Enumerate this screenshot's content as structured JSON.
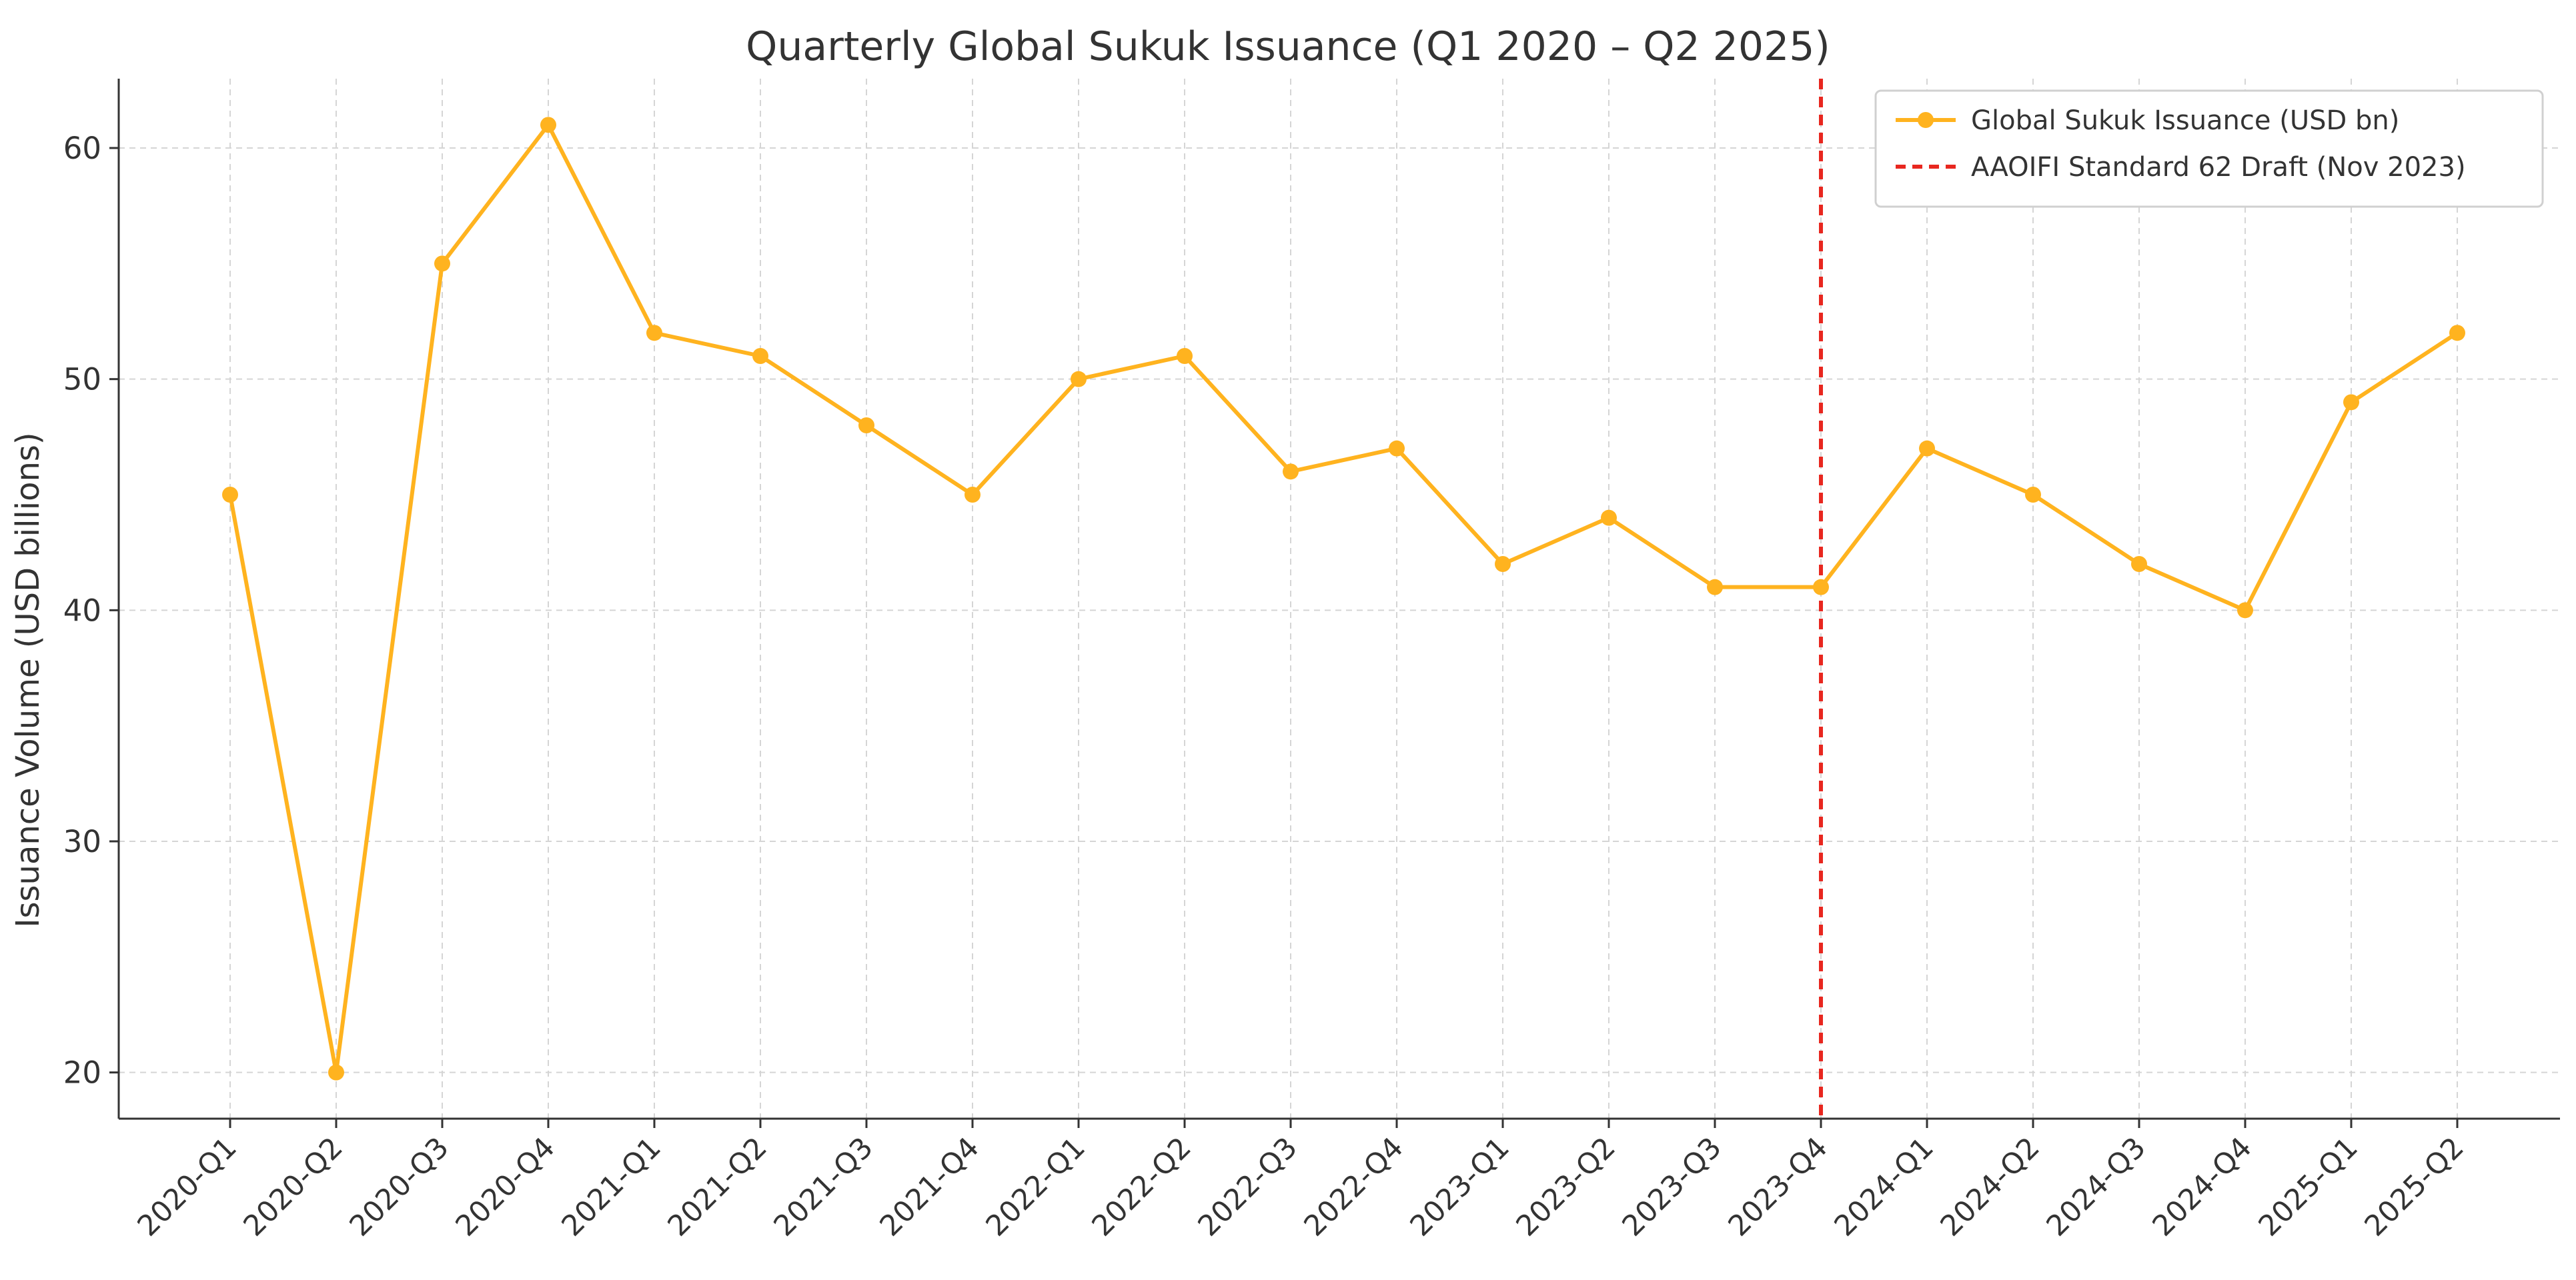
{
  "chart_data": {
    "type": "line",
    "title": "Quarterly Global Sukuk Issuance (Q1 2020 – Q2 2025)",
    "xlabel": "",
    "ylabel": "Issuance Volume (USD billions)",
    "ylim": [
      18,
      63
    ],
    "yticks": [
      20,
      30,
      40,
      50,
      60
    ],
    "grid": true,
    "legend_position": "top-right",
    "categories": [
      "2020-Q1",
      "2020-Q2",
      "2020-Q3",
      "2020-Q4",
      "2021-Q1",
      "2021-Q2",
      "2021-Q3",
      "2021-Q4",
      "2022-Q1",
      "2022-Q2",
      "2022-Q3",
      "2022-Q4",
      "2023-Q1",
      "2023-Q2",
      "2023-Q3",
      "2023-Q4",
      "2024-Q1",
      "2024-Q2",
      "2024-Q3",
      "2024-Q4",
      "2025-Q1",
      "2025-Q2"
    ],
    "series": [
      {
        "name": "Global Sukuk Issuance (USD bn)",
        "color": "#FFB31F",
        "values": [
          45,
          20,
          55,
          61,
          52,
          51,
          48,
          45,
          50,
          51,
          46,
          47,
          42,
          44,
          41,
          41,
          47,
          45,
          42,
          40,
          49,
          52
        ]
      }
    ],
    "annotations": [
      {
        "type": "vline",
        "x": "2023-Q4",
        "label": "AAOIFI Standard 62 Draft (Nov 2023)",
        "color": "#E8271F",
        "style": "dashed"
      }
    ]
  }
}
